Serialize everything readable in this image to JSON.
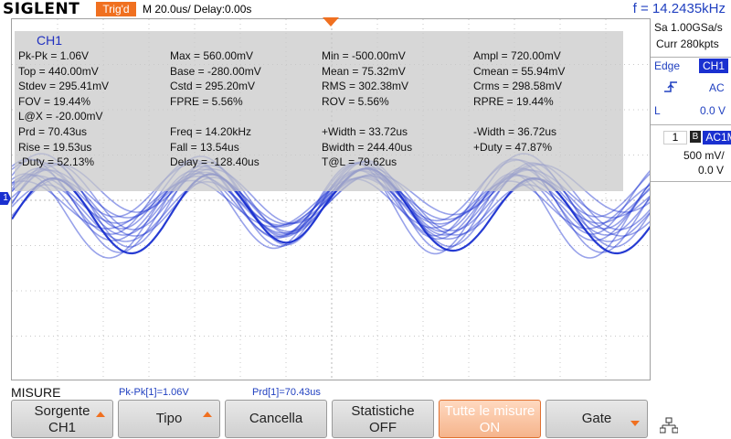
{
  "header": {
    "brand": "SIGLENT",
    "trigger_status": "Trig'd",
    "timebase": "M 20.0us/  Delay:0.00s",
    "frequency": "f = 14.2435kHz"
  },
  "measurements": {
    "channel": "CH1",
    "rows": [
      [
        "Pk-Pk = 1.06V",
        "Max = 560.00mV",
        "Min = -500.00mV",
        "Ampl = 720.00mV"
      ],
      [
        "Top = 440.00mV",
        "Base = -280.00mV",
        "Mean = 75.32mV",
        "Cmean = 55.94mV"
      ],
      [
        "Stdev = 295.41mV",
        "Cstd = 295.20mV",
        "RMS = 302.38mV",
        "Crms = 298.58mV"
      ],
      [
        "FOV = 19.44%",
        "FPRE = 5.56%",
        "ROV = 5.56%",
        "RPRE = 19.44%"
      ],
      [
        "L@X = -20.00mV",
        "",
        "",
        ""
      ],
      [
        "Prd = 70.43us",
        "Freq = 14.20kHz",
        "+Width = 33.72us",
        "-Width = 36.72us"
      ],
      [
        "Rise = 19.53us",
        "Fall = 13.54us",
        "Bwidth = 244.40us",
        "+Duty = 47.87%"
      ],
      [
        "-Duty = 52.13%",
        "Delay = -128.40us",
        "T@L = 79.62us",
        ""
      ]
    ]
  },
  "waveform": {
    "channel_marker": "1",
    "color": "#1a30d0"
  },
  "right_panel": {
    "sample_rate": "Sa 1.00GSa/s",
    "memory": "Curr 280kpts",
    "trigger_type": "Edge",
    "trigger_source": "CH1",
    "trigger_coupling": "AC",
    "trigger_level_label": "L",
    "trigger_level": "0.0 V",
    "ch_number": "1",
    "bw_limit": "B",
    "ch_coupling": "AC1M",
    "ch_scale": "500 mV/",
    "ch_offset": "0.0 V"
  },
  "menu": {
    "title": "MISURE",
    "stat1": "Pk-Pk[1]=1.06V",
    "stat2": "Prd[1]=70.43us",
    "softkeys": [
      {
        "line1": "Sorgente",
        "line2": "CH1"
      },
      {
        "line1": "Tipo",
        "line2": ""
      },
      {
        "line1": "Cancella",
        "line2": ""
      },
      {
        "line1": "Statistiche",
        "line2": "OFF"
      },
      {
        "line1": "Tutte le misure",
        "line2": "ON"
      },
      {
        "line1": "Gate",
        "line2": ""
      }
    ]
  },
  "accent_color": "#f07020",
  "icons": [
    "rising-edge-icon",
    "network-icon",
    "arrow-up-icon",
    "arrow-down-icon"
  ]
}
